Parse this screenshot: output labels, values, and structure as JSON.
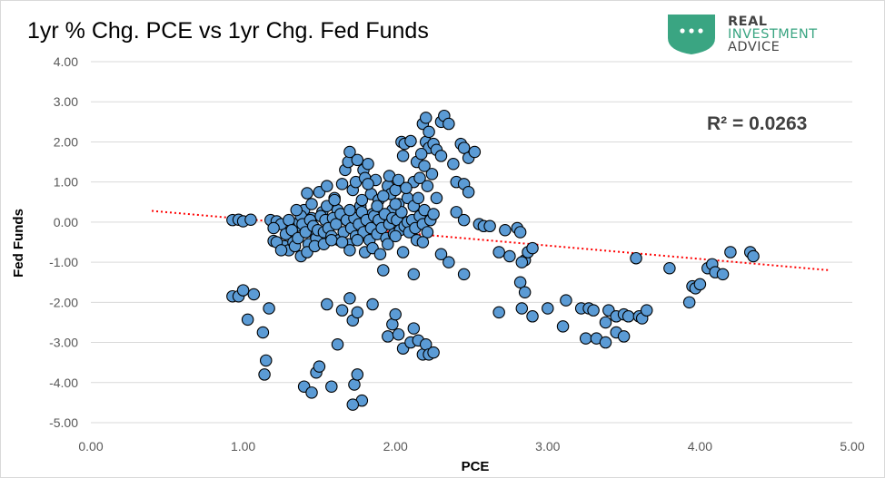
{
  "chart_data": {
    "type": "scatter",
    "title": "1yr % Chg. PCE vs 1yr Chg. Fed Funds",
    "xlabel": "PCE",
    "ylabel": "Fed Funds",
    "xlim": [
      0,
      5
    ],
    "ylim": [
      -5,
      4
    ],
    "x_ticks": [
      "0.00",
      "1.00",
      "2.00",
      "3.00",
      "4.00",
      "5.00"
    ],
    "y_ticks": [
      "4.00",
      "3.00",
      "2.00",
      "1.00",
      "0.00",
      "-1.00",
      "-2.00",
      "-3.00",
      "-4.00",
      "-5.00"
    ],
    "grid": "horizontal",
    "annotation": "R² = 0.0263",
    "marker_color": "#5b9bd5",
    "trendline": {
      "style": "dotted",
      "color": "#ff0000",
      "x": [
        0.4,
        4.85
      ],
      "y": [
        0.28,
        -1.2
      ]
    },
    "points": [
      [
        0.93,
        0.05
      ],
      [
        0.97,
        0.06
      ],
      [
        1.0,
        0.02
      ],
      [
        1.05,
        0.06
      ],
      [
        0.93,
        -1.85
      ],
      [
        0.97,
        -1.85
      ],
      [
        1.0,
        -1.7
      ],
      [
        1.03,
        -2.43
      ],
      [
        1.07,
        -1.8
      ],
      [
        1.13,
        -2.75
      ],
      [
        1.14,
        -3.8
      ],
      [
        1.15,
        -3.45
      ],
      [
        1.17,
        -2.15
      ],
      [
        1.18,
        0.05
      ],
      [
        1.2,
        -0.47
      ],
      [
        1.22,
        0.02
      ],
      [
        1.25,
        -0.05
      ],
      [
        1.27,
        -0.6
      ],
      [
        1.3,
        -0.7
      ],
      [
        1.33,
        -0.5
      ],
      [
        1.35,
        -0.1
      ],
      [
        1.37,
        0.0
      ],
      [
        1.4,
        0.3
      ],
      [
        1.42,
        0.72
      ],
      [
        1.45,
        0.1
      ],
      [
        1.47,
        -0.3
      ],
      [
        1.5,
        0.75
      ],
      [
        1.52,
        0.25
      ],
      [
        1.55,
        0.9
      ],
      [
        1.57,
        -0.1
      ],
      [
        1.6,
        0.6
      ],
      [
        1.62,
        0.3
      ],
      [
        1.65,
        0.95
      ],
      [
        1.67,
        1.3
      ],
      [
        1.69,
        1.5
      ],
      [
        1.7,
        1.75
      ],
      [
        1.72,
        0.8
      ],
      [
        1.74,
        1.0
      ],
      [
        1.75,
        1.55
      ],
      [
        1.77,
        0.4
      ],
      [
        1.79,
        1.3
      ],
      [
        1.8,
        1.1
      ],
      [
        1.82,
        1.45
      ],
      [
        1.84,
        0.7
      ],
      [
        1.85,
        0.2
      ],
      [
        1.87,
        1.05
      ],
      [
        1.89,
        0.55
      ],
      [
        1.9,
        -0.1
      ],
      [
        1.92,
        0.0
      ],
      [
        1.95,
        0.9
      ],
      [
        1.97,
        0.7
      ],
      [
        1.98,
        0.3
      ],
      [
        2.0,
        0.8
      ],
      [
        2.02,
        0.45
      ],
      [
        2.04,
        2.0
      ],
      [
        2.05,
        1.65
      ],
      [
        2.06,
        1.95
      ],
      [
        2.08,
        0.6
      ],
      [
        2.1,
        2.02
      ],
      [
        2.12,
        1.0
      ],
      [
        2.14,
        1.5
      ],
      [
        2.16,
        1.1
      ],
      [
        2.18,
        2.45
      ],
      [
        2.2,
        2.6
      ],
      [
        2.2,
        2.0
      ],
      [
        2.22,
        1.85
      ],
      [
        2.22,
        2.25
      ],
      [
        2.24,
        1.2
      ],
      [
        2.25,
        1.95
      ],
      [
        2.27,
        1.8
      ],
      [
        2.3,
        2.5
      ],
      [
        2.32,
        2.65
      ],
      [
        2.35,
        2.45
      ],
      [
        2.3,
        1.65
      ],
      [
        2.38,
        1.45
      ],
      [
        2.4,
        1.0
      ],
      [
        2.43,
        1.95
      ],
      [
        2.45,
        1.85
      ],
      [
        2.48,
        1.6
      ],
      [
        2.52,
        1.75
      ],
      [
        2.45,
        0.95
      ],
      [
        2.48,
        0.75
      ],
      [
        2.4,
        0.25
      ],
      [
        2.45,
        0.05
      ],
      [
        2.55,
        -0.05
      ],
      [
        2.58,
        -0.1
      ],
      [
        2.62,
        -0.1
      ],
      [
        2.68,
        -0.75
      ],
      [
        2.72,
        -0.2
      ],
      [
        2.75,
        -0.85
      ],
      [
        2.8,
        -0.15
      ],
      [
        2.82,
        -0.25
      ],
      [
        2.85,
        -0.95
      ],
      [
        2.87,
        -0.75
      ],
      [
        2.9,
        -0.65
      ],
      [
        2.83,
        -1.0
      ],
      [
        2.82,
        -1.5
      ],
      [
        2.85,
        -1.75
      ],
      [
        2.68,
        -2.25
      ],
      [
        2.83,
        -2.15
      ],
      [
        2.9,
        -2.35
      ],
      [
        3.0,
        -2.15
      ],
      [
        3.12,
        -1.95
      ],
      [
        3.1,
        -2.6
      ],
      [
        3.22,
        -2.15
      ],
      [
        3.27,
        -2.15
      ],
      [
        3.3,
        -2.2
      ],
      [
        3.38,
        -2.5
      ],
      [
        3.4,
        -2.2
      ],
      [
        3.45,
        -2.35
      ],
      [
        3.5,
        -2.3
      ],
      [
        3.53,
        -2.35
      ],
      [
        3.6,
        -2.35
      ],
      [
        3.62,
        -2.4
      ],
      [
        3.65,
        -2.2
      ],
      [
        3.25,
        -2.9
      ],
      [
        3.32,
        -2.9
      ],
      [
        3.38,
        -3.0
      ],
      [
        3.45,
        -2.75
      ],
      [
        3.5,
        -2.85
      ],
      [
        3.58,
        -0.9
      ],
      [
        3.8,
        -1.15
      ],
      [
        3.93,
        -2.0
      ],
      [
        3.95,
        -1.6
      ],
      [
        3.97,
        -1.65
      ],
      [
        4.0,
        -1.55
      ],
      [
        4.05,
        -1.15
      ],
      [
        4.08,
        -1.05
      ],
      [
        4.1,
        -1.25
      ],
      [
        4.15,
        -1.3
      ],
      [
        4.2,
        -0.75
      ],
      [
        4.33,
        -0.75
      ],
      [
        4.35,
        -0.85
      ],
      [
        1.2,
        -0.15
      ],
      [
        1.22,
        -0.5
      ],
      [
        1.25,
        -0.7
      ],
      [
        1.28,
        -0.3
      ],
      [
        1.3,
        0.05
      ],
      [
        1.32,
        -0.2
      ],
      [
        1.34,
        -0.6
      ],
      [
        1.36,
        -0.4
      ],
      [
        1.38,
        0.15
      ],
      [
        1.39,
        -0.05
      ],
      [
        1.41,
        -0.25
      ],
      [
        1.43,
        -0.55
      ],
      [
        1.44,
        0.05
      ],
      [
        1.46,
        -0.1
      ],
      [
        1.48,
        -0.4
      ],
      [
        1.49,
        -0.2
      ],
      [
        1.51,
        0.15
      ],
      [
        1.53,
        -0.25
      ],
      [
        1.54,
        0.05
      ],
      [
        1.56,
        -0.15
      ],
      [
        1.58,
        -0.35
      ],
      [
        1.59,
        0.1
      ],
      [
        1.61,
        -0.05
      ],
      [
        1.63,
        -0.45
      ],
      [
        1.64,
        0.2
      ],
      [
        1.66,
        -0.25
      ],
      [
        1.68,
        0.05
      ],
      [
        1.69,
        -0.55
      ],
      [
        1.71,
        -0.15
      ],
      [
        1.73,
        0.1
      ],
      [
        1.74,
        -0.35
      ],
      [
        1.76,
        -0.05
      ],
      [
        1.78,
        0.25
      ],
      [
        1.79,
        -0.25
      ],
      [
        1.81,
        0.05
      ],
      [
        1.83,
        -0.45
      ],
      [
        1.84,
        -0.15
      ],
      [
        1.86,
        0.15
      ],
      [
        1.88,
        -0.3
      ],
      [
        1.89,
        0.05
      ],
      [
        1.91,
        -0.15
      ],
      [
        1.93,
        0.2
      ],
      [
        1.94,
        -0.4
      ],
      [
        1.96,
        -0.05
      ],
      [
        1.98,
        0.1
      ],
      [
        1.99,
        -0.3
      ],
      [
        2.01,
        0.05
      ],
      [
        2.03,
        -0.2
      ],
      [
        2.04,
        0.25
      ],
      [
        2.06,
        -0.1
      ],
      [
        2.08,
        0.0
      ],
      [
        2.09,
        -0.25
      ],
      [
        2.11,
        0.05
      ],
      [
        2.13,
        -0.15
      ],
      [
        2.14,
        -0.45
      ],
      [
        2.16,
        0.15
      ],
      [
        2.18,
        -0.05
      ],
      [
        2.19,
        0.3
      ],
      [
        2.21,
        -0.25
      ],
      [
        2.23,
        0.05
      ],
      [
        2.25,
        0.2
      ],
      [
        2.27,
        0.6
      ],
      [
        1.35,
        0.3
      ],
      [
        1.45,
        0.45
      ],
      [
        1.55,
        0.4
      ],
      [
        1.6,
        0.55
      ],
      [
        1.7,
        0.3
      ],
      [
        1.78,
        0.55
      ],
      [
        1.82,
        0.95
      ],
      [
        1.88,
        0.4
      ],
      [
        1.92,
        0.65
      ],
      [
        1.96,
        1.15
      ],
      [
        2.0,
        0.45
      ],
      [
        2.02,
        1.05
      ],
      [
        2.07,
        0.85
      ],
      [
        2.12,
        0.4
      ],
      [
        2.15,
        0.6
      ],
      [
        2.17,
        1.7
      ],
      [
        2.19,
        1.4
      ],
      [
        2.21,
        0.9
      ],
      [
        1.38,
        -0.85
      ],
      [
        1.42,
        -0.75
      ],
      [
        1.47,
        -0.6
      ],
      [
        1.53,
        -0.55
      ],
      [
        1.58,
        -0.45
      ],
      [
        1.65,
        -0.5
      ],
      [
        1.7,
        -0.7
      ],
      [
        1.75,
        -0.45
      ],
      [
        1.8,
        -0.75
      ],
      [
        1.85,
        -0.65
      ],
      [
        1.9,
        -0.8
      ],
      [
        1.95,
        -0.55
      ],
      [
        2.0,
        -0.35
      ],
      [
        2.05,
        -0.75
      ],
      [
        2.12,
        -1.3
      ],
      [
        2.18,
        -0.5
      ],
      [
        2.3,
        -0.8
      ],
      [
        2.35,
        -1.0
      ],
      [
        2.45,
        -1.3
      ],
      [
        1.92,
        -1.2
      ],
      [
        1.4,
        -4.1
      ],
      [
        1.45,
        -4.25
      ],
      [
        1.48,
        -3.75
      ],
      [
        1.5,
        -3.6
      ],
      [
        1.58,
        -4.1
      ],
      [
        1.62,
        -3.05
      ],
      [
        1.55,
        -2.05
      ],
      [
        1.65,
        -2.2
      ],
      [
        1.7,
        -1.9
      ],
      [
        1.72,
        -2.45
      ],
      [
        1.75,
        -2.25
      ],
      [
        1.73,
        -4.05
      ],
      [
        1.75,
        -3.8
      ],
      [
        1.78,
        -4.45
      ],
      [
        1.72,
        -4.55
      ],
      [
        1.85,
        -2.05
      ],
      [
        1.95,
        -2.85
      ],
      [
        1.98,
        -2.55
      ],
      [
        2.0,
        -2.3
      ],
      [
        2.02,
        -2.8
      ],
      [
        2.05,
        -3.15
      ],
      [
        2.1,
        -3.0
      ],
      [
        2.12,
        -2.65
      ],
      [
        2.15,
        -2.95
      ],
      [
        2.18,
        -3.3
      ],
      [
        2.2,
        -3.05
      ],
      [
        2.22,
        -3.3
      ],
      [
        2.25,
        -3.25
      ]
    ]
  }
}
